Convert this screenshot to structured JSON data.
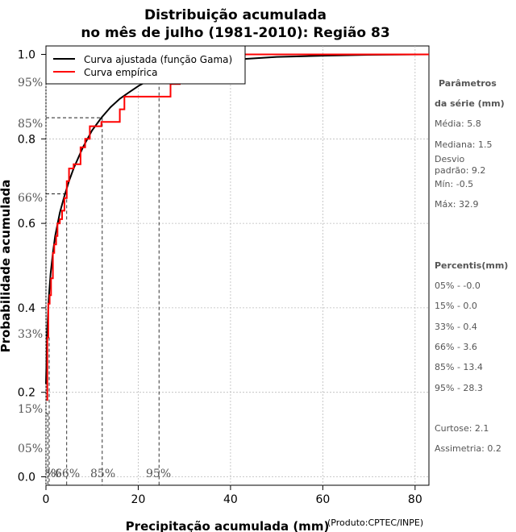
{
  "title_line1": "Distribuição acumulada",
  "title_line2": "no mês de julho (1981-2010): Região 83",
  "credit": "(Produto:CPTEC/INPE)",
  "colors": {
    "fitted": "#000000",
    "empirical": "#ff0000",
    "grid": "#bbbbbb",
    "guide": "#000000"
  },
  "chart_data": {
    "type": "line",
    "xlabel": "Precipitação acumulada (mm)",
    "ylabel": "Probabilidade acumulada",
    "xlim": [
      0,
      83
    ],
    "ylim": [
      -0.02,
      1.02
    ],
    "x_ticks": [
      "0",
      "20",
      "40",
      "60",
      "80"
    ],
    "y_ticks": [
      "0.0",
      "0.2",
      "0.4",
      "0.6",
      "0.8",
      "1.0"
    ],
    "grid": true,
    "legend_position": "top-left",
    "legend": [
      "Curva ajustada (função Gama)",
      "Curva empírica"
    ],
    "percentile_y_labels": [
      "05%",
      "15%",
      "33%",
      "66%",
      "85%",
      "95%"
    ],
    "percentile_x_labels": [
      "%",
      "%",
      "66%",
      "85%",
      "95%"
    ],
    "series": [
      {
        "name": "Curva ajustada (função Gama)",
        "x": [
          0,
          0.3,
          0.6,
          1,
          1.5,
          2,
          3,
          4,
          5,
          6,
          8,
          10,
          12,
          14,
          16,
          18,
          20,
          22,
          24,
          26,
          28,
          30,
          35,
          40,
          50,
          60,
          70,
          83
        ],
        "y": [
          0.22,
          0.35,
          0.42,
          0.48,
          0.53,
          0.57,
          0.625,
          0.665,
          0.7,
          0.73,
          0.78,
          0.82,
          0.85,
          0.875,
          0.895,
          0.91,
          0.925,
          0.937,
          0.947,
          0.955,
          0.963,
          0.97,
          0.98,
          0.987,
          0.994,
          0.997,
          0.999,
          1.0
        ]
      },
      {
        "name": "Curva empírica",
        "step_x": [
          0.3,
          0.5,
          0.8,
          1.1,
          1.5,
          1.8,
          2.2,
          2.5,
          3,
          3.5,
          4,
          4.5,
          5,
          6,
          7.5,
          8.5,
          9.5,
          12,
          16,
          17,
          27,
          29,
          36,
          66
        ],
        "step_y": [
          0.33,
          0.41,
          0.43,
          0.47,
          0.53,
          0.55,
          0.57,
          0.6,
          0.61,
          0.63,
          0.66,
          0.7,
          0.73,
          0.74,
          0.78,
          0.8,
          0.83,
          0.84,
          0.87,
          0.9,
          0.93,
          0.97,
          1.0,
          1.0
        ]
      }
    ],
    "guides": [
      {
        "label": "66%",
        "x": 4.5,
        "y": 0.67
      },
      {
        "label": "85%",
        "x": 12.2,
        "y": 0.85
      },
      {
        "label": "95%",
        "x": 24.5,
        "y": 0.95
      },
      {
        "label": "%",
        "x": 0.4,
        "y": 0.15
      },
      {
        "label": "%",
        "x": 0.7,
        "y": 0.33
      }
    ]
  },
  "sidebar": {
    "params_title1": "Parâmetros",
    "params_title2": "da série (mm)",
    "media": "Média: 5.8",
    "mediana": "Mediana: 1.5",
    "desvio1": "Desvio",
    "desvio2": "padrão: 9.2",
    "min": "Mín: -0.5",
    "max": "Máx: 32.9",
    "percentis_title": "Percentis(mm)",
    "p05": "05% - -0.0",
    "p15": "15% - 0.0",
    "p33": "33% - 0.4",
    "p66": "66% - 3.6",
    "p85": "85% - 13.4",
    "p95": "95% - 28.3",
    "curtose": "Curtose: 2.1",
    "assimetria": "Assimetria: 0.2"
  }
}
